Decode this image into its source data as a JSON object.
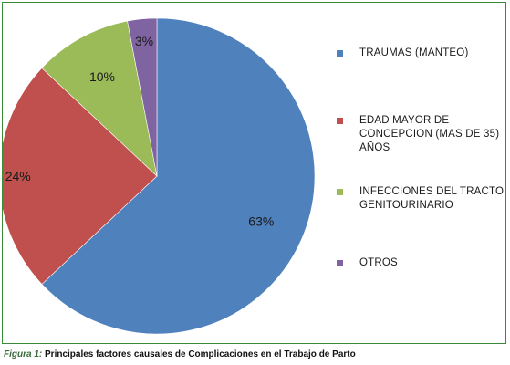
{
  "chart_data": {
    "type": "pie",
    "categories": [
      "TRAUMAS (MANTEO)",
      "EDAD MAYOR DE\nCONCEPCION (MAS DE 35)\nAÑOS",
      "INFECCIONES DEL TRACTO\nGENITOURINARIO",
      "OTROS"
    ],
    "values": [
      63,
      24,
      10,
      3
    ],
    "data_labels": [
      "63%",
      "24%",
      "10%",
      "3%"
    ],
    "colors": [
      "#4f81bd",
      "#c0504d",
      "#9bbb59",
      "#8064a2"
    ],
    "legend_position": "right",
    "start_angle": "12 o'clock, clockwise"
  },
  "caption": {
    "prefix": "Figura 1:",
    "text": " Principales factores causales de Complicaciones en el Trabajo de Parto"
  }
}
